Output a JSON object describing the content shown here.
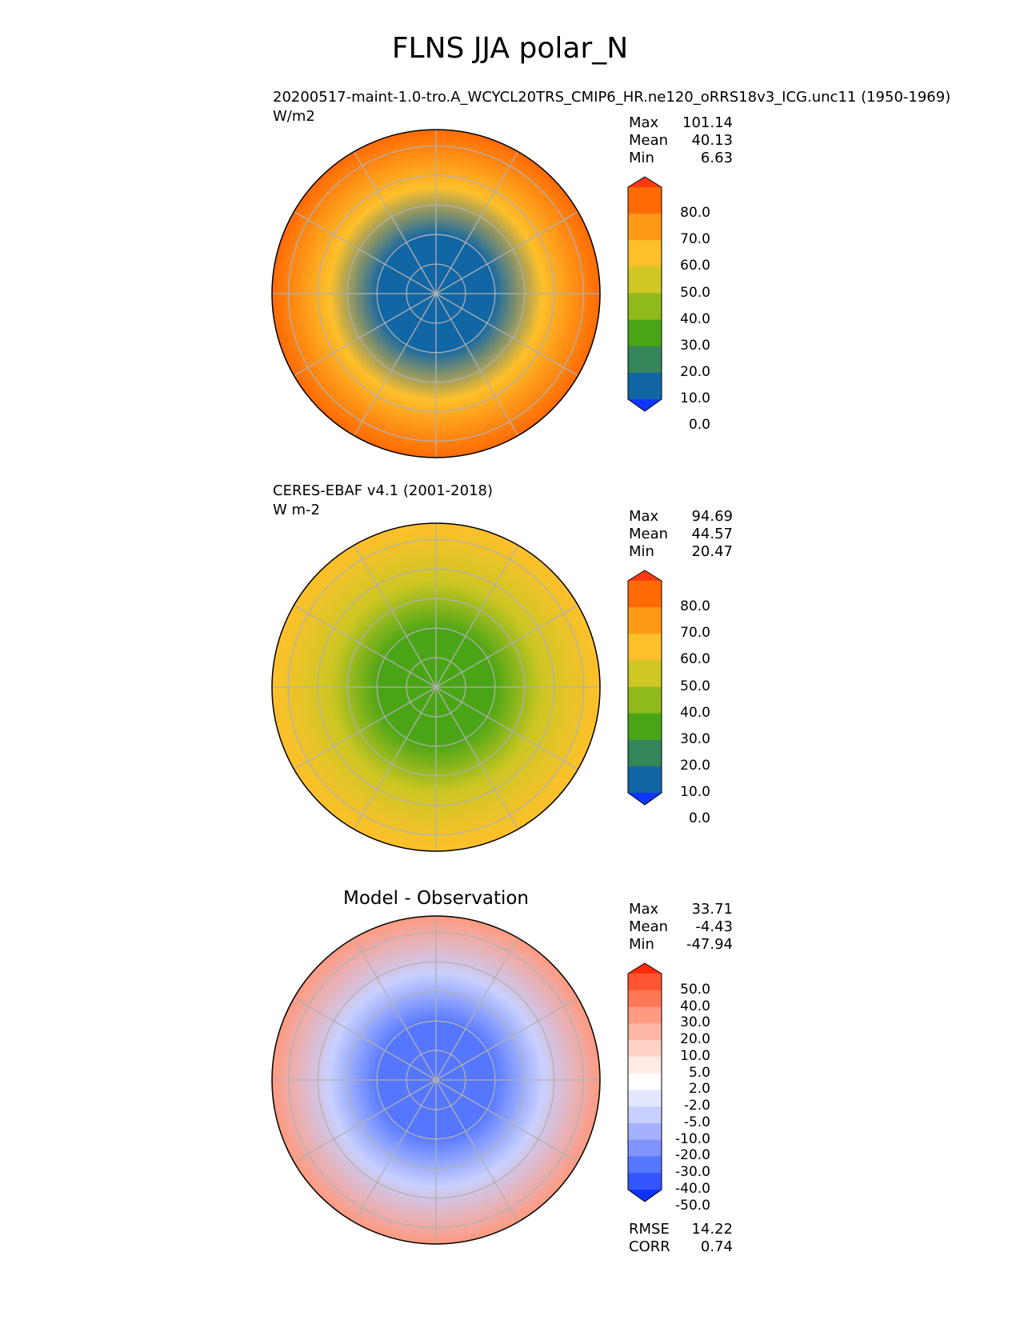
{
  "figure": {
    "title": "FLNS JJA polar_N"
  },
  "panels": [
    {
      "id": "model",
      "title_line1": "20200517-maint-1.0-tro.A_WCYCL20TRS_CMIP6_HR.ne120_oRRS18v3_ICG.unc11 (1950-1969)",
      "units": "W/m2",
      "stats": [
        {
          "label": "Max",
          "value": "101.14"
        },
        {
          "label": "Mean",
          "value": "40.13"
        },
        {
          "label": "Min",
          "value": "6.63"
        }
      ],
      "colorbar": {
        "ticks": [
          "80.0",
          "70.0",
          "60.0",
          "50.0",
          "40.0",
          "30.0",
          "20.0",
          "10.0",
          "0.0"
        ],
        "colors": [
          "#ff3a10",
          "#ff6a05",
          "#ff9a15",
          "#fec02a",
          "#cfc724",
          "#8fba1a",
          "#4aa516",
          "#35855a",
          "#1166a6",
          "#0d37ff"
        ]
      },
      "map_colors": {
        "ocean_pole": "#1166a6",
        "mid": "#fec02a",
        "edge": "#ff6a05"
      }
    },
    {
      "id": "obs",
      "title_line1": "CERES-EBAF v4.1 (2001-2018)",
      "units": "W m-2",
      "stats": [
        {
          "label": "Max",
          "value": "94.69"
        },
        {
          "label": "Mean",
          "value": "44.57"
        },
        {
          "label": "Min",
          "value": "20.47"
        }
      ],
      "colorbar": {
        "ticks": [
          "80.0",
          "70.0",
          "60.0",
          "50.0",
          "40.0",
          "30.0",
          "20.0",
          "10.0",
          "0.0"
        ],
        "colors": [
          "#ff3a10",
          "#ff6a05",
          "#ff9a15",
          "#fec02a",
          "#cfc724",
          "#8fba1a",
          "#4aa516",
          "#35855a",
          "#1166a6",
          "#0d37ff"
        ]
      },
      "map_colors": {
        "ocean_pole": "#4aa516",
        "mid": "#cfc724",
        "edge": "#fec02a"
      }
    },
    {
      "id": "diff",
      "title_line1": "Model - Observation",
      "stats": [
        {
          "label": "Max",
          "value": "33.71"
        },
        {
          "label": "Mean",
          "value": "-4.43"
        },
        {
          "label": "Min",
          "value": "-47.94"
        }
      ],
      "colorbar": {
        "ticks": [
          "50.0",
          "40.0",
          "30.0",
          "20.0",
          "10.0",
          "5.0",
          "2.0",
          "-2.0",
          "-5.0",
          "-10.0",
          "-20.0",
          "-30.0",
          "-40.0",
          "-50.0"
        ],
        "colors": [
          "#ff2a0a",
          "#ff5533",
          "#ff7755",
          "#ff9a80",
          "#ffb7a5",
          "#ffd2c8",
          "#ffeae4",
          "#ffffff",
          "#e4e8ff",
          "#c8d0ff",
          "#a5b0ff",
          "#8093ff",
          "#5577ff",
          "#3355ff",
          "#0d33ff"
        ]
      },
      "map_colors": {
        "ocean_pole": "#5577ff",
        "mid": "#c8d0ff",
        "edge": "#ff9a80"
      },
      "metrics": [
        {
          "label": "RMSE",
          "value": "14.22"
        },
        {
          "label": "CORR",
          "value": "0.74"
        }
      ]
    }
  ]
}
